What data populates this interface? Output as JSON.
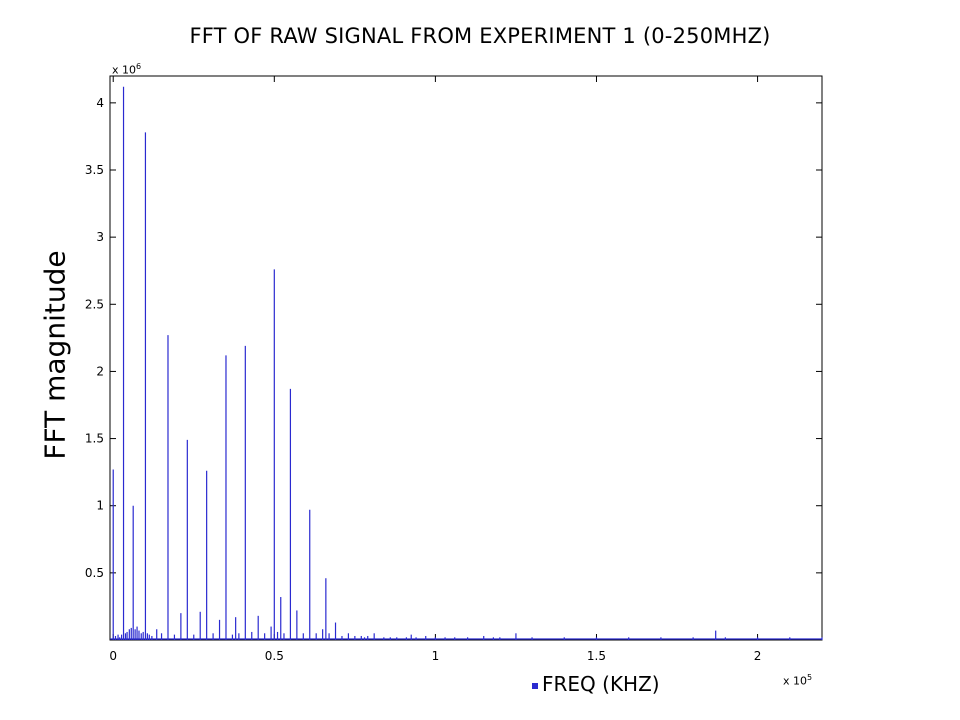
{
  "chart_data": {
    "type": "line",
    "title": "FFT OF RAW SIGNAL FROM EXPERIMENT 1 (0-250MHZ)",
    "xlabel": "FREQ (KHZ)",
    "ylabel": "FFT magnitude",
    "x_multiplier": {
      "base": "x 10",
      "exp": "5"
    },
    "y_multiplier": {
      "base": "x 10",
      "exp": "6"
    },
    "xlim": [
      -1000,
      220000
    ],
    "ylim": [
      0,
      4.2
    ],
    "x_ticks": [
      0,
      50000,
      100000,
      150000,
      200000
    ],
    "x_tick_labels": [
      "0",
      "0.5",
      "1",
      "1.5",
      "2"
    ],
    "y_ticks": [
      0,
      0.5,
      1,
      1.5,
      2,
      2.5,
      3,
      3.5,
      4
    ],
    "y_tick_labels": [
      "",
      "0.5",
      "1",
      "1.5",
      "2",
      "2.5",
      "3",
      "3.5",
      "4"
    ],
    "grid": false,
    "line_color": "#2a2ad0",
    "series": [
      {
        "x": [
          0,
          700,
          1500,
          2000,
          2600,
          3200,
          3800,
          4300,
          5000,
          5600,
          6200,
          6800,
          7400,
          8000,
          8700,
          9300,
          10000,
          10600,
          11200,
          12000,
          13500,
          15000,
          17000,
          19000,
          21000,
          23000,
          25000,
          27000,
          29000,
          31000,
          33000,
          35000,
          37000,
          38000,
          39000,
          41000,
          43000,
          45000,
          47000,
          49000,
          50000,
          51000,
          52000,
          53000,
          55000,
          57000,
          59000,
          61000,
          63000,
          65000,
          66000,
          67000,
          69000,
          71000,
          73000,
          75000,
          77000,
          78000,
          79000,
          81000,
          84000,
          86000,
          88000,
          91000,
          92500,
          94000,
          97000,
          100000,
          103000,
          106000,
          110000,
          115000,
          118000,
          120000,
          125000,
          130000,
          140000,
          150000,
          160000,
          170000,
          180000,
          187000,
          190000,
          200000,
          210000,
          220000
        ],
        "y": [
          1.27,
          0.03,
          0.04,
          0.02,
          0.04,
          4.12,
          0.05,
          0.06,
          0.08,
          0.09,
          1.0,
          0.08,
          0.1,
          0.07,
          0.05,
          0.06,
          3.78,
          0.05,
          0.04,
          0.03,
          0.08,
          0.05,
          2.27,
          0.04,
          0.2,
          1.49,
          0.04,
          0.21,
          1.26,
          0.05,
          0.15,
          2.12,
          0.04,
          0.17,
          0.05,
          2.19,
          0.06,
          0.18,
          0.05,
          0.1,
          2.76,
          0.06,
          0.32,
          0.05,
          1.87,
          0.22,
          0.05,
          0.97,
          0.05,
          0.08,
          0.46,
          0.05,
          0.13,
          0.03,
          0.05,
          0.03,
          0.03,
          0.02,
          0.03,
          0.05,
          0.02,
          0.02,
          0.02,
          0.02,
          0.04,
          0.02,
          0.03,
          0.02,
          0.02,
          0.02,
          0.02,
          0.03,
          0.02,
          0.02,
          0.05,
          0.02,
          0.02,
          0.02,
          0.02,
          0.02,
          0.02,
          0.07,
          0.02,
          0.02,
          0.02,
          0.02
        ]
      }
    ]
  }
}
